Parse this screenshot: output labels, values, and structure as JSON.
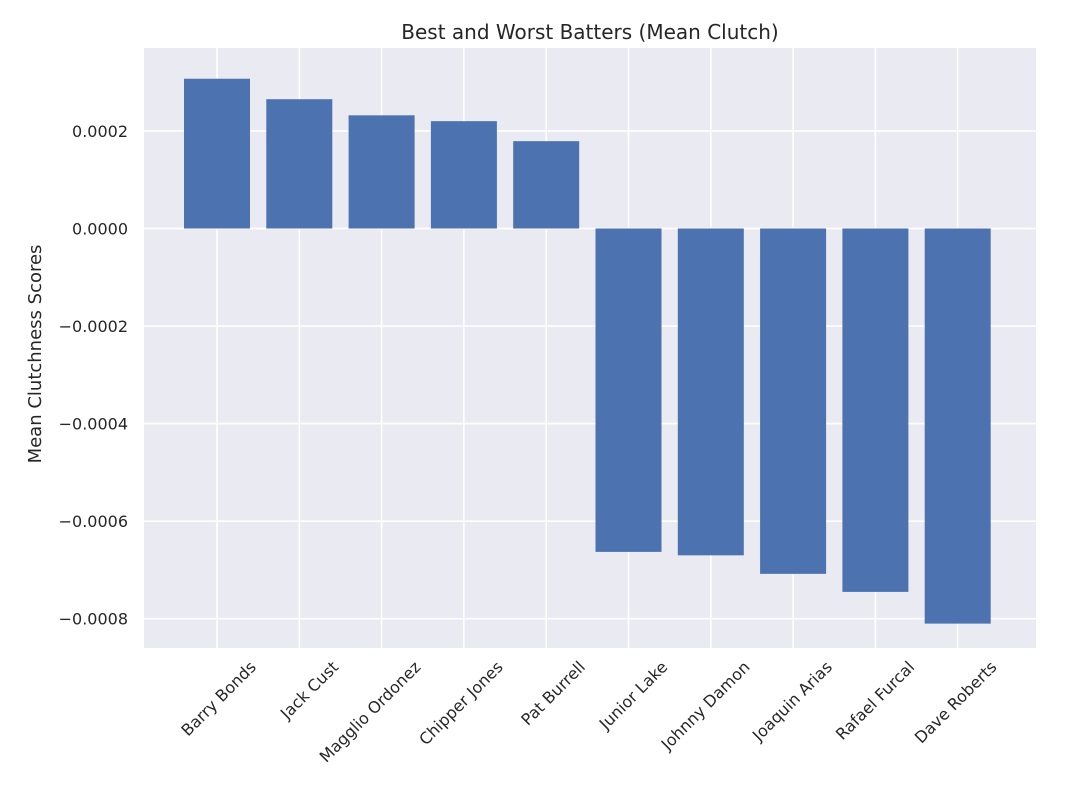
{
  "chart_data": {
    "type": "bar",
    "title": "Best and Worst Batters (Mean Clutch)",
    "xlabel": "",
    "ylabel": "Mean Clutchness Scores",
    "categories": [
      "Barry Bonds",
      "Jack Cust",
      "Magglio Ordonez",
      "Chipper Jones",
      "Pat Burrell",
      "Junior Lake",
      "Johnny Damon",
      "Joaquin Arias",
      "Rafael Furcal",
      "Dave Roberts"
    ],
    "values": [
      0.000307,
      0.000265,
      0.000232,
      0.00022,
      0.000179,
      -0.000663,
      -0.00067,
      -0.000708,
      -0.000745,
      -0.00081
    ],
    "ylim": [
      -0.00086,
      0.00037
    ],
    "yticks": [
      0.0002,
      0.0,
      -0.0002,
      -0.0004,
      -0.0006,
      -0.0008
    ],
    "ytick_labels": [
      "0.0002",
      "0.0000",
      "−0.0002",
      "−0.0004",
      "−0.0006",
      "−0.0008"
    ],
    "grid": true,
    "colors": {
      "bar": "#4c72b0",
      "plot_background": "#eaeaf2",
      "grid": "#ffffff"
    }
  }
}
